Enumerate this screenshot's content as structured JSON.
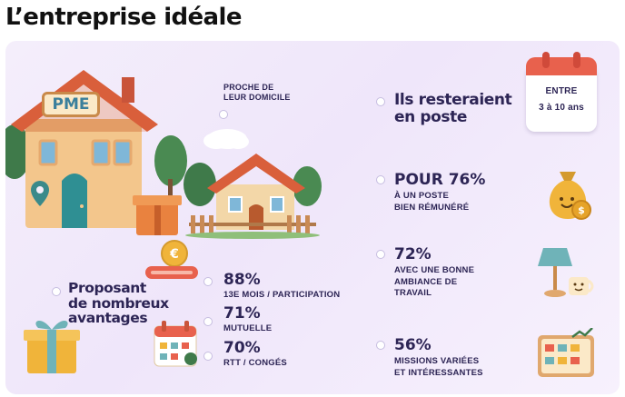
{
  "title": "L’entreprise idéale",
  "house_sign": "PME",
  "proche": "PROCHE DE\nLEUR DOMICILE",
  "resteraient": {
    "heading": "Ils resteraient\nen poste",
    "calendar_line1": "ENTRE",
    "calendar_line2": "3 à 10 ans"
  },
  "stats_right": [
    {
      "pct": "POUR 76%",
      "caption": "À UN POSTE\nBIEN RÉMUNÉRÉ"
    },
    {
      "pct": "72%",
      "caption": "AVEC UNE BONNE\nAMBIANCE DE\nTRAVAIL"
    },
    {
      "pct": "56%",
      "caption": "MISSIONS VARIÉES\nET INTÉRESSANTES"
    }
  ],
  "avantages": {
    "heading": "Proposant\nde nombreux\navantages",
    "items": [
      {
        "pct": "88%",
        "caption": "13E MOIS / PARTICIPATION"
      },
      {
        "pct": "71%",
        "caption": "MUTUELLE"
      },
      {
        "pct": "70%",
        "caption": "RTT / CONGÉS"
      }
    ]
  },
  "colors": {
    "navy": "#2d2555",
    "panel": "#f2ebfb",
    "roof": "#d95f3b",
    "wall": "#f2c48a",
    "accent_red": "#e8614d"
  }
}
